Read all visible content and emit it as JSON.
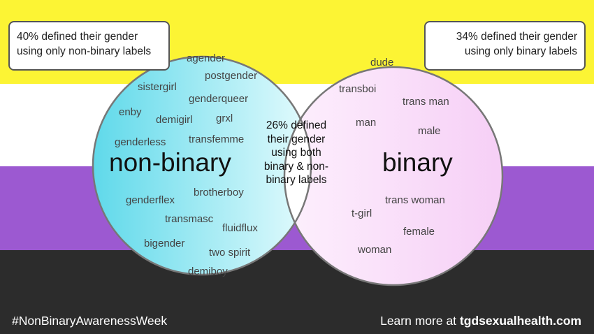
{
  "colors": {
    "flag_yellow": "#fcf434",
    "flag_white": "#ffffff",
    "flag_purple": "#9c59d1",
    "flag_black": "#2c2c2c",
    "nonbinary_circle": "#7ee6f2",
    "binary_circle": "#f7d4f7"
  },
  "callouts": {
    "left": "40% defined their gender using only non-binary labels",
    "right": "34% defined their gender using only binary labels"
  },
  "overlap": {
    "text": "26% defined their gender using both binary & non-binary labels"
  },
  "sets": {
    "nonbinary": {
      "title": "non-binary",
      "words": [
        "agender",
        "postgender",
        "sistergirl",
        "genderqueer",
        "enby",
        "demigirl",
        "grxl",
        "genderless",
        "transfemme",
        "genderflex",
        "brotherboy",
        "transmasc",
        "fluidflux",
        "bigender",
        "two spirit",
        "demiboy"
      ]
    },
    "binary": {
      "title": "binary",
      "words": [
        "dude",
        "transboi",
        "trans man",
        "man",
        "male",
        "trans woman",
        "t-girl",
        "female",
        "woman"
      ]
    }
  },
  "footer": {
    "hashtag": "#NonBinaryAwarenessWeek",
    "learn_more": "Learn more at",
    "website": "tgdsexualhealth.com"
  }
}
